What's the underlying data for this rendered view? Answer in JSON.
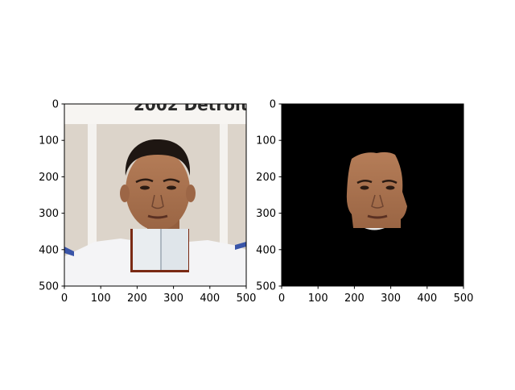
{
  "colors": {
    "axis": "#000000",
    "photo_background": "#dcd4ca",
    "banner_text": "#2a2a2a",
    "jersey": "#f4f4f6",
    "skin": "#a8724e",
    "hair": "#1e1612",
    "mask_background": "#000000",
    "book_page": "#e9edf0",
    "book_cover": "#7a2a14"
  },
  "chart_data": [
    {
      "type": "image",
      "panel": "left",
      "content": "photo with book occluder",
      "banner_text": "2002 Detroit",
      "xlim": [
        0,
        500
      ],
      "ylim": [
        500,
        0
      ],
      "xticks": [
        "0",
        "100",
        "200",
        "300",
        "400",
        "500"
      ],
      "yticks": [
        "0",
        "100",
        "200",
        "300",
        "400",
        "500"
      ]
    },
    {
      "type": "image",
      "panel": "right",
      "content": "segmented face on black background",
      "xlim": [
        0,
        500
      ],
      "ylim": [
        500,
        0
      ],
      "xticks": [
        "0",
        "100",
        "200",
        "300",
        "400",
        "500"
      ],
      "yticks": [
        "0",
        "100",
        "200",
        "300",
        "400",
        "500"
      ]
    }
  ]
}
